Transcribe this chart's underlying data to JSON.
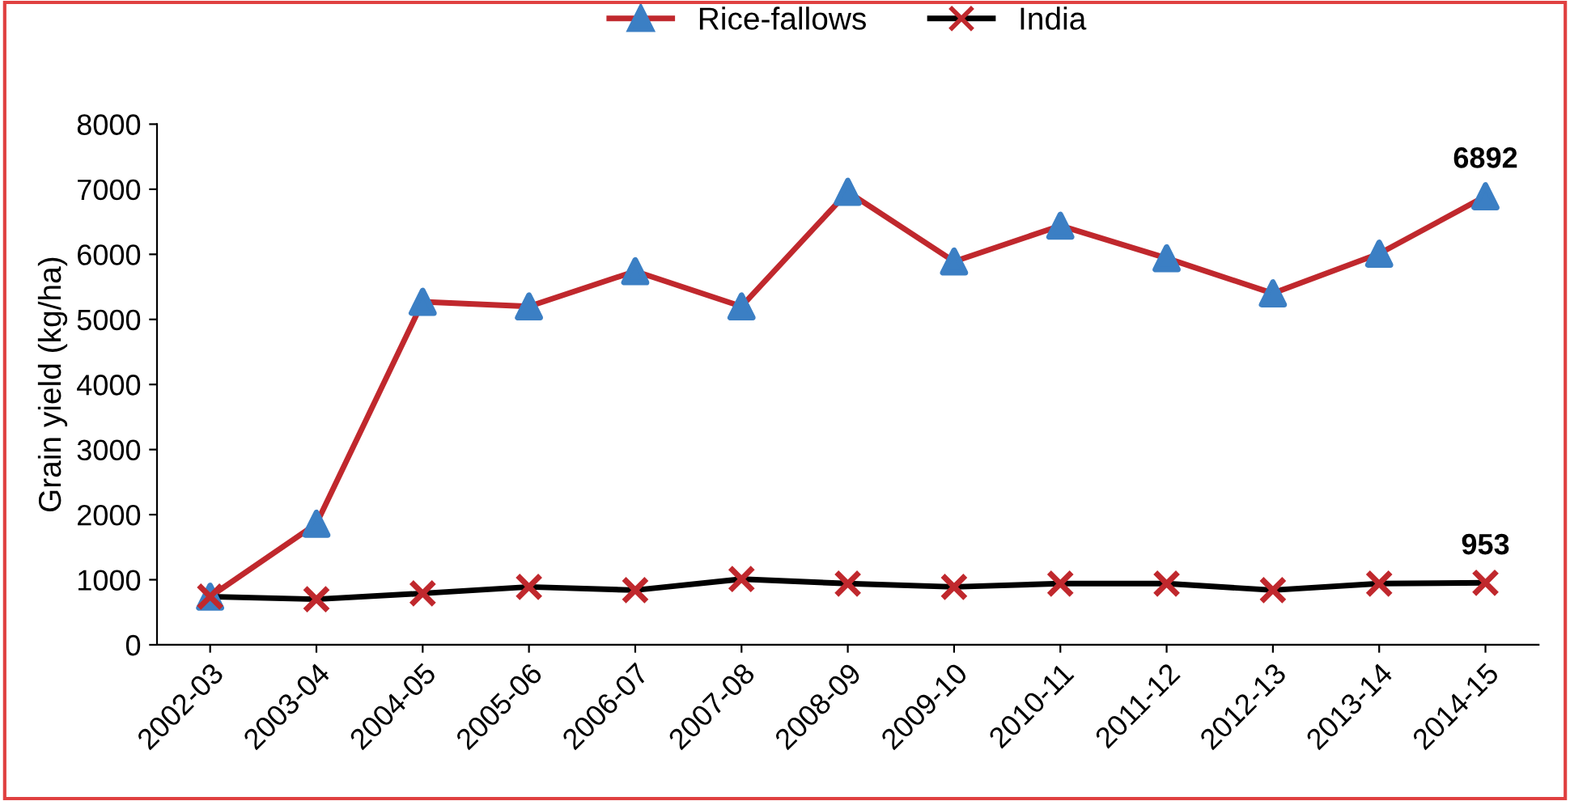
{
  "chart_data": {
    "type": "line",
    "ylabel": "Grain yield (kg/ha)",
    "categories": [
      "2002-03",
      "2003-04",
      "2004-05",
      "2005-06",
      "2006-07",
      "2007-08",
      "2008-09",
      "2009-10",
      "2010-11",
      "2011-12",
      "2012-13",
      "2013-14",
      "2014-15"
    ],
    "series": [
      {
        "name": "Rice-fallows",
        "color": "#c0282d",
        "colors": [
          "#3b7fc4",
          "#3b7fc4",
          "#3b7fc4",
          "#3b7fc4",
          "#3b7fc4",
          "#3b7fc4",
          "#3b7fc4",
          "#3b7fc4",
          "#3b7fc4",
          "#3b7fc4",
          "#3b7fc4",
          "#3b7fc4",
          "#3b7fc4"
        ],
        "marker": "triangle",
        "values": [
          740,
          1860,
          5270,
          5200,
          5740,
          5200,
          6960,
          5890,
          6440,
          5940,
          5400,
          6010,
          6892
        ],
        "value_labels": [
          null,
          null,
          null,
          null,
          null,
          null,
          null,
          null,
          null,
          null,
          null,
          null,
          "6892"
        ]
      },
      {
        "name": "India",
        "color": "#000000",
        "colors": [
          "#c0282d",
          "#c0282d",
          "#c0282d",
          "#c0282d",
          "#c0282d",
          "#c0282d",
          "#c0282d",
          "#c0282d",
          "#c0282d",
          "#c0282d",
          "#c0282d",
          "#c0282d",
          "#c0282d"
        ],
        "marker": "cross",
        "values": [
          740,
          700,
          790,
          890,
          840,
          1010,
          940,
          890,
          940,
          940,
          840,
          940,
          953
        ],
        "value_labels": [
          null,
          null,
          null,
          null,
          null,
          null,
          null,
          null,
          null,
          null,
          null,
          null,
          "953"
        ]
      }
    ],
    "ylim": [
      0,
      8000
    ],
    "yticks": [
      0,
      1000,
      2000,
      3000,
      4000,
      5000,
      6000,
      7000,
      8000
    ],
    "grid": false,
    "legend": "top"
  }
}
